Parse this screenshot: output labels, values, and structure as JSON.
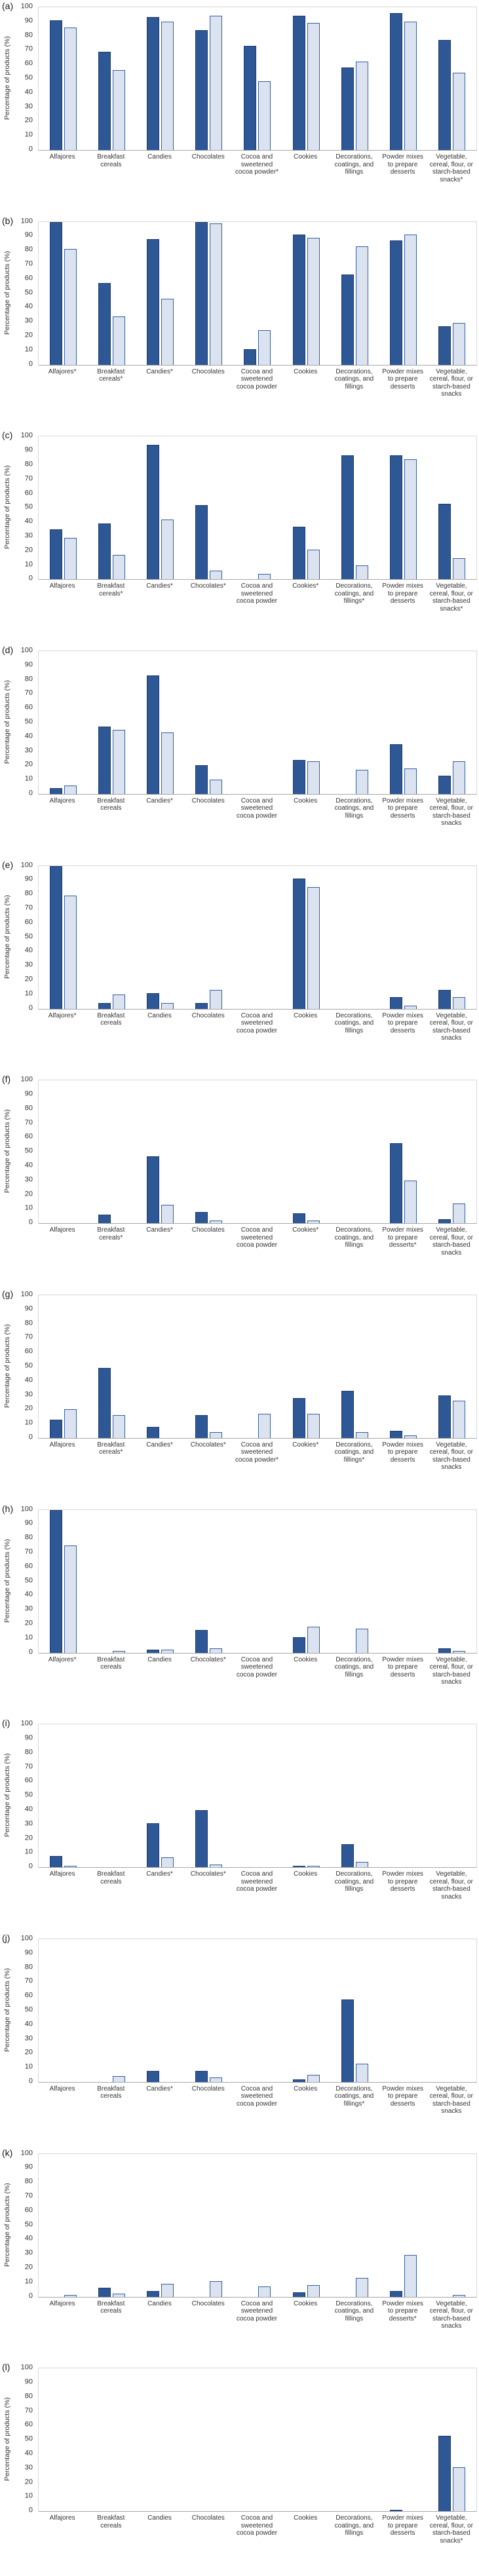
{
  "figure": {
    "ylabel": "Percentage of products (%)",
    "ylim": [
      0,
      100
    ],
    "ytick_step": 10,
    "grid": "off",
    "legend": "none",
    "colors": {
      "dark_blue_fill": "#2E5796",
      "dark_blue_border": "#1F3B6D",
      "light_blue_fill": "#DBE3F1",
      "light_blue_border": "#355E9E"
    }
  },
  "chart_data": [
    {
      "type": "bar",
      "panel": "(a)",
      "ylabel": "Percentage of products (%)",
      "ylim": [
        0,
        100
      ],
      "categories": [
        "Alfajores",
        "Breakfast cereals",
        "Candies",
        "Chocolates",
        "Cocoa and sweetened cocoa powder*",
        "Cookies",
        "Decorations, coatings, and fillings",
        "Powder mixes to prepare desserts",
        "Vegetable, cereal, flour, or starch-based snacks*"
      ],
      "series": [
        {
          "name": "dark_blue",
          "values": [
            91,
            69,
            93,
            84,
            73,
            94,
            58,
            96,
            77
          ]
        },
        {
          "name": "light_blue",
          "values": [
            86,
            56,
            90,
            94,
            48,
            89,
            62,
            90,
            54
          ]
        }
      ]
    },
    {
      "type": "bar",
      "panel": "(b)",
      "ylabel": "Percentage of products (%)",
      "ylim": [
        0,
        100
      ],
      "categories": [
        "Alfajores*",
        "Breakfast cereals*",
        "Candies*",
        "Chocolates",
        "Cocoa and sweetened cocoa powder",
        "Cookies",
        "Decorations, coatings, and fillings",
        "Powder mixes to prepare desserts",
        "Vegetable, cereal, flour, or starch-based snacks"
      ],
      "series": [
        {
          "name": "dark_blue",
          "values": [
            100,
            57,
            88,
            100,
            11,
            91,
            63,
            87,
            27
          ]
        },
        {
          "name": "light_blue",
          "values": [
            81,
            34,
            46,
            99,
            24,
            89,
            83,
            91,
            29
          ]
        }
      ]
    },
    {
      "type": "bar",
      "panel": "(c)",
      "ylabel": "Percentage of products (%)",
      "ylim": [
        0,
        100
      ],
      "categories": [
        "Alfajores",
        "Breakfast cereals*",
        "Candies*",
        "Chocolates*",
        "Cocoa and sweetened cocoa powder",
        "Cookies*",
        "Decorations, coatings, and fillings*",
        "Powder mixes to prepare desserts",
        "Vegetable, cereal, flour, or starch-based snacks*"
      ],
      "series": [
        {
          "name": "dark_blue",
          "values": [
            35,
            39,
            94,
            52,
            0,
            37,
            87,
            87,
            53
          ]
        },
        {
          "name": "light_blue",
          "values": [
            29,
            17,
            42,
            6,
            4,
            21,
            10,
            84,
            15
          ]
        }
      ]
    },
    {
      "type": "bar",
      "panel": "(d)",
      "ylabel": "Percentage of products (%)",
      "ylim": [
        0,
        100
      ],
      "categories": [
        "Alfajores",
        "Breakfast cereals",
        "Candies*",
        "Chocolates",
        "Cocoa and sweetened cocoa powder",
        "Cookies",
        "Decorations, coatings, and fillings",
        "Powder mixes to prepare desserts",
        "Vegetable, cereal, flour, or starch-based snacks"
      ],
      "series": [
        {
          "name": "dark_blue",
          "values": [
            4,
            47,
            83,
            20,
            0,
            24,
            0,
            35,
            13
          ]
        },
        {
          "name": "light_blue",
          "values": [
            6,
            45,
            43,
            10,
            0,
            23,
            17,
            18,
            23
          ]
        }
      ]
    },
    {
      "type": "bar",
      "panel": "(e)",
      "ylabel": "Percentage of products (%)",
      "ylim": [
        0,
        100
      ],
      "categories": [
        "Alfajores*",
        "Breakfast cereals",
        "Candies",
        "Chocolates",
        "Cocoa and sweetened cocoa powder",
        "Cookies",
        "Decorations, coatings, and fillings",
        "Powder mixes to prepare desserts",
        "Vegetable, cereal, flour, or starch-based snacks"
      ],
      "series": [
        {
          "name": "dark_blue",
          "values": [
            100,
            4,
            11,
            4,
            0,
            91,
            0,
            8,
            13
          ]
        },
        {
          "name": "light_blue",
          "values": [
            79,
            10,
            4,
            13,
            0,
            85,
            0,
            2,
            8
          ]
        }
      ]
    },
    {
      "type": "bar",
      "panel": "(f)",
      "ylabel": "Percentage of products (%)",
      "ylim": [
        0,
        100
      ],
      "categories": [
        "Alfajores",
        "Breakfast cereals*",
        "Candies*",
        "Chocolates",
        "Cocoa and sweetened cocoa powder",
        "Cookies*",
        "Decorations, coatings, and fillings",
        "Powder mixes to prepare desserts*",
        "Vegetable, cereal, flour, or starch-based snacks"
      ],
      "series": [
        {
          "name": "dark_blue",
          "values": [
            0,
            6,
            47,
            8,
            0,
            7,
            0,
            56,
            3
          ]
        },
        {
          "name": "light_blue",
          "values": [
            0,
            0,
            13,
            2,
            0,
            2,
            0,
            30,
            14
          ]
        }
      ]
    },
    {
      "type": "bar",
      "panel": "(g)",
      "ylabel": "Percentage of products (%)",
      "ylim": [
        0,
        100
      ],
      "categories": [
        "Alfajores",
        "Breakfast cereals*",
        "Candies*",
        "Chocolates*",
        "Cocoa and sweetened cocoa powder*",
        "Cookies*",
        "Decorations, coatings, and fillings*",
        "Powder mixes to prepare desserts",
        "Vegetable, cereal, flour, or starch-based snacks"
      ],
      "series": [
        {
          "name": "dark_blue",
          "values": [
            13,
            49,
            8,
            16,
            0,
            28,
            33,
            5,
            30
          ]
        },
        {
          "name": "light_blue",
          "values": [
            20,
            16,
            0,
            4,
            17,
            17,
            4,
            2,
            26
          ]
        }
      ]
    },
    {
      "type": "bar",
      "panel": "(h)",
      "ylabel": "Percentage of products (%)",
      "ylim": [
        0,
        100
      ],
      "categories": [
        "Alfajores*",
        "Breakfast cereals",
        "Candies",
        "Chocolates*",
        "Cocoa and sweetened cocoa powder",
        "Cookies",
        "Decorations, coatings, and fillings",
        "Powder mixes to prepare desserts",
        "Vegetable, cereal, flour, or starch-based snacks"
      ],
      "series": [
        {
          "name": "dark_blue",
          "values": [
            100,
            0,
            2,
            16,
            0,
            11,
            0,
            0,
            3
          ]
        },
        {
          "name": "light_blue",
          "values": [
            75,
            1,
            2,
            3,
            0,
            18,
            17,
            0,
            1
          ]
        }
      ]
    },
    {
      "type": "bar",
      "panel": "(i)",
      "ylabel": "Percentage of products (%)",
      "ylim": [
        0,
        100
      ],
      "categories": [
        "Alfajores",
        "Breakfast cereals",
        "Candies*",
        "Chocolates*",
        "Cocoa and sweetened cocoa powder",
        "Cookies",
        "Decorations, coatings, and fillings",
        "Powder mixes to prepare desserts",
        "Vegetable, cereal, flour, or starch-based snacks"
      ],
      "series": [
        {
          "name": "dark_blue",
          "values": [
            8,
            0,
            31,
            40,
            0,
            1,
            16,
            0,
            0
          ]
        },
        {
          "name": "light_blue",
          "values": [
            1,
            0,
            7,
            2,
            0,
            1,
            4,
            0,
            0
          ]
        }
      ]
    },
    {
      "type": "bar",
      "panel": "(j)",
      "ylabel": "Percentage of products (%)",
      "ylim": [
        0,
        100
      ],
      "categories": [
        "Alfajores",
        "Breakfast cereals",
        "Candies*",
        "Chocolates",
        "Cocoa and sweetened cocoa powder",
        "Cookies",
        "Decorations, coatings, and fillings*",
        "Powder mixes to prepare desserts",
        "Vegetable, cereal, flour, or starch-based snacks"
      ],
      "series": [
        {
          "name": "dark_blue",
          "values": [
            0,
            0,
            8,
            8,
            0,
            2,
            58,
            0,
            0
          ]
        },
        {
          "name": "light_blue",
          "values": [
            0,
            4,
            0,
            3,
            0,
            5,
            13,
            0,
            0
          ]
        }
      ]
    },
    {
      "type": "bar",
      "panel": "(k)",
      "ylabel": "Percentage of products (%)",
      "ylim": [
        0,
        100
      ],
      "categories": [
        "Alfajores",
        "Breakfast cereals",
        "Candies",
        "Chocolates",
        "Cocoa and sweetened cocoa powder",
        "Cookies",
        "Decorations, coatings, and fillings",
        "Powder mixes to prepare desserts*",
        "Vegetable, cereal, flour, or starch-based snacks"
      ],
      "series": [
        {
          "name": "dark_blue",
          "values": [
            0,
            6,
            4,
            0,
            0,
            3,
            0,
            4,
            0
          ]
        },
        {
          "name": "light_blue",
          "values": [
            1,
            2,
            9,
            11,
            7,
            8,
            13,
            29,
            1
          ]
        }
      ]
    },
    {
      "type": "bar",
      "panel": "(l)",
      "ylabel": "Percentage of products (%)",
      "ylim": [
        0,
        100
      ],
      "categories": [
        "Alfajores",
        "Breakfast cereals",
        "Candies",
        "Chocolates",
        "Cocoa and sweetened cocoa powder",
        "Cookies",
        "Decorations, coatings, and fillings",
        "Powder mixes to prepare desserts",
        "Vegetable, cereal, flour, or starch-based snacks*"
      ],
      "series": [
        {
          "name": "dark_blue",
          "values": [
            0,
            0,
            0,
            0,
            0,
            0,
            0,
            1,
            53
          ]
        },
        {
          "name": "light_blue",
          "values": [
            0,
            0,
            0,
            0,
            0,
            0,
            0,
            0,
            31
          ]
        }
      ]
    }
  ]
}
